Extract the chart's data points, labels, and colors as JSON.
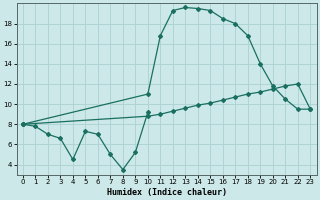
{
  "xlabel": "Humidex (Indice chaleur)",
  "background_color": "#cce8e8",
  "grid_color": "#b0d4d4",
  "line_color": "#1a7060",
  "xlim": [
    -0.5,
    23.5
  ],
  "ylim": [
    3.0,
    20.0
  ],
  "yticks": [
    4,
    6,
    8,
    10,
    12,
    14,
    16,
    18
  ],
  "xticks": [
    0,
    1,
    2,
    3,
    4,
    5,
    6,
    7,
    8,
    9,
    10,
    11,
    12,
    13,
    14,
    15,
    16,
    17,
    18,
    19,
    20,
    21,
    22,
    23
  ],
  "s1_x": [
    0,
    1,
    2,
    3,
    4,
    5,
    6,
    7,
    8,
    9,
    10
  ],
  "s1_y": [
    8.0,
    7.8,
    7.0,
    6.6,
    4.5,
    7.3,
    7.0,
    5.0,
    3.5,
    5.2,
    9.2
  ],
  "s2_x": [
    0,
    10,
    11,
    12,
    13,
    14,
    15,
    16,
    17,
    18,
    19,
    20,
    21,
    22,
    23
  ],
  "s2_y": [
    8.0,
    11.0,
    16.8,
    19.3,
    19.6,
    19.5,
    19.3,
    18.5,
    18.0,
    16.8,
    14.0,
    11.8,
    10.5,
    9.5,
    9.5
  ],
  "s3_x": [
    0,
    10,
    11,
    12,
    13,
    14,
    15,
    16,
    17,
    18,
    19,
    20,
    21,
    22,
    23
  ],
  "s3_y": [
    8.0,
    8.8,
    9.0,
    9.3,
    9.6,
    9.9,
    10.1,
    10.4,
    10.7,
    11.0,
    11.2,
    11.5,
    11.8,
    12.0,
    9.5
  ]
}
